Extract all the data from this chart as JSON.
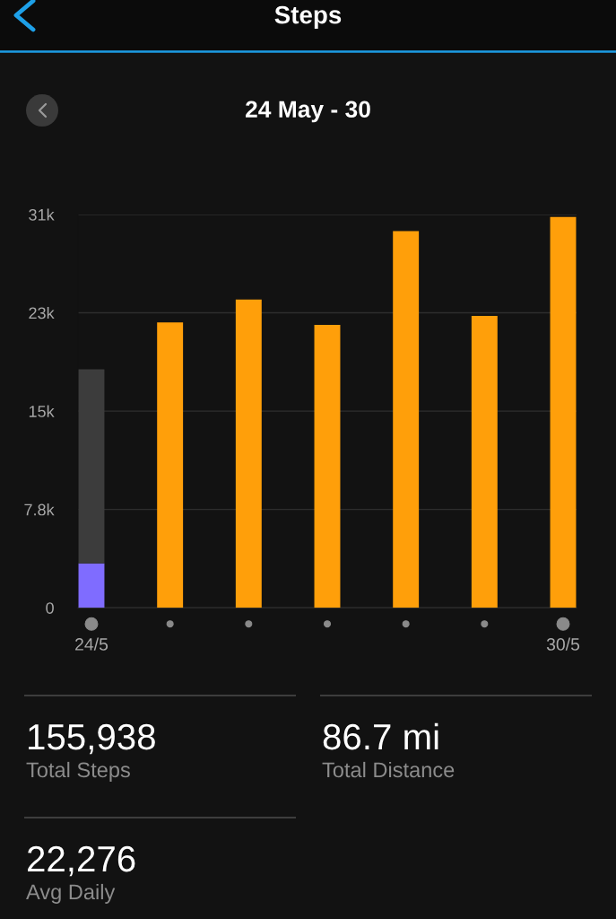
{
  "chart_data": {
    "type": "bar",
    "title": "Steps",
    "subtitle": "24 May - 30",
    "categories": [
      "24/5",
      null,
      null,
      null,
      null,
      null,
      "30/5"
    ],
    "series": [
      {
        "colors": [
          "#7f6cff",
          "#ff9f0a",
          "#ff9f0a",
          "#ff9f0a",
          "#ff9f0a",
          "#ff9f0a",
          "#ff9f0a"
        ],
        "values": [
          3500,
          22500,
          24300,
          22300,
          29700,
          23000,
          30800
        ]
      },
      {
        "color": "#3c3c3c",
        "values": [
          15300,
          null,
          null,
          null,
          null,
          null,
          null
        ]
      }
    ],
    "stacked": true,
    "ylim": [
      0,
      31000
    ],
    "yticks": [
      0,
      {
        "value": 7750,
        "label": "7.8k"
      },
      {
        "value": 15500,
        "label": "15k"
      },
      {
        "value": 23250,
        "label": "23k"
      },
      {
        "value": 31000,
        "label": "31k"
      }
    ],
    "grid": "y",
    "annotations": [
      "155,938",
      "Total Steps",
      "86.7 mi",
      "Total Distance",
      "22,276",
      "Avg Daily"
    ]
  }
}
